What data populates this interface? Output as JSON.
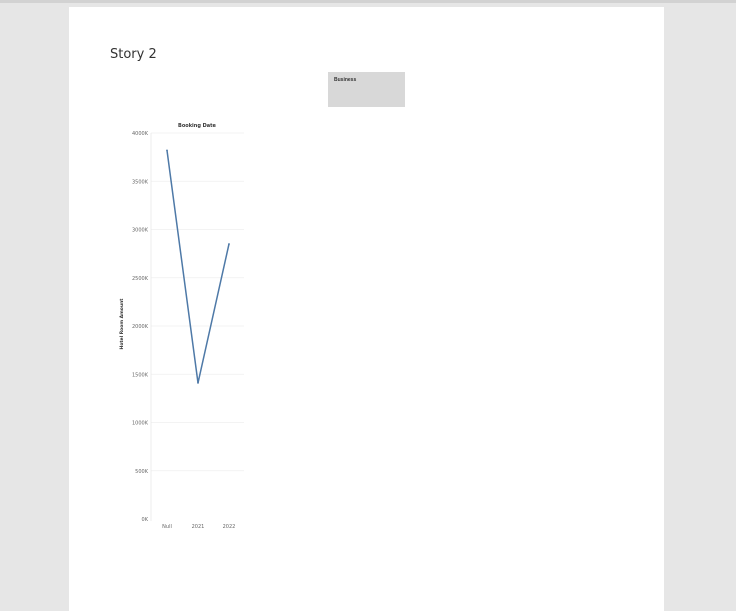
{
  "story": {
    "title": "Story 2"
  },
  "filter": {
    "label": "Business"
  },
  "colors": {
    "line": "#4e79a7",
    "gridline": "#efefef",
    "tick_text": "#666666",
    "title_text": "#333333"
  },
  "chart_data": {
    "type": "line",
    "title": "Booking Date",
    "xlabel": "",
    "ylabel": "Hotel Room Amount",
    "categories": [
      "Null",
      "2021",
      "2022"
    ],
    "series": [
      {
        "values": [
          3820000,
          1410000,
          2850000
        ]
      }
    ],
    "ylim": [
      0,
      4000000
    ],
    "yticks": [
      0,
      500000,
      1000000,
      1500000,
      2000000,
      2500000,
      3000000,
      3500000,
      4000000
    ],
    "ytick_labels": [
      "0K",
      "500K",
      "1000K",
      "1500K",
      "2000K",
      "2500K",
      "3000K",
      "3500K",
      "4000K"
    ],
    "grid": true,
    "legend": "none"
  }
}
